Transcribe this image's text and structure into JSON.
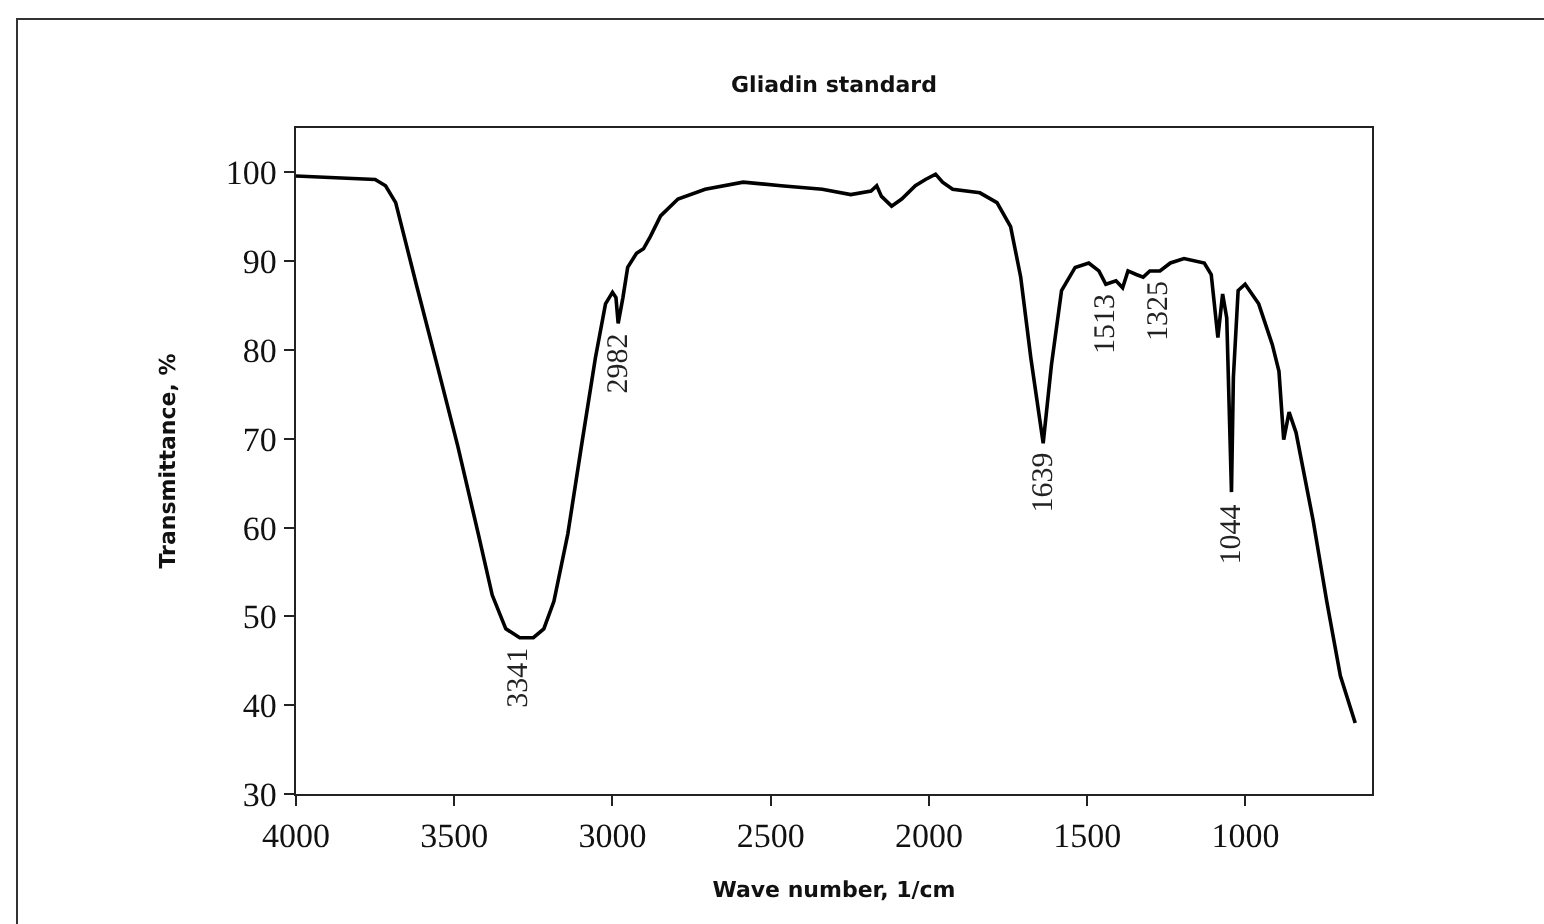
{
  "chart_data": {
    "type": "line",
    "title": "Gliadin standard",
    "xlabel": "Wave number, 1/cm",
    "ylabel": "Transmittance, %",
    "xlim": [
      4000,
      600
    ],
    "xticks": [
      4000,
      3500,
      3000,
      2500,
      2000,
      1500,
      1000
    ],
    "ylim": [
      30,
      105
    ],
    "yticks": [
      30,
      40,
      50,
      60,
      70,
      80,
      90,
      100
    ],
    "grid": false,
    "marker": "none",
    "line_style": "solid",
    "x": [
      4000,
      3750,
      3717,
      3685,
      3620,
      3554,
      3489,
      3424,
      3380,
      3337,
      3293,
      3250,
      3217,
      3185,
      3141,
      3098,
      3054,
      3022,
      3000,
      2989,
      2982,
      2967,
      2952,
      2924,
      2902,
      2880,
      2848,
      2793,
      2707,
      2587,
      2467,
      2337,
      2247,
      2183,
      2165,
      2150,
      2118,
      2086,
      2043,
      2011,
      1979,
      1957,
      1925,
      1839,
      1785,
      1742,
      1710,
      1678,
      1639,
      1613,
      1581,
      1538,
      1495,
      1463,
      1441,
      1409,
      1388,
      1371,
      1345,
      1323,
      1302,
      1270,
      1237,
      1194,
      1130,
      1108,
      1087,
      1072,
      1059,
      1044,
      1038,
      1023,
      1001,
      958,
      915,
      894,
      879,
      862,
      840,
      786,
      743,
      700,
      653
    ],
    "series": [
      {
        "color": "#000000",
        "values": [
          99.6,
          99.2,
          98.5,
          96.6,
          87.4,
          78.3,
          69.2,
          59.3,
          52.4,
          48.6,
          47.6,
          47.6,
          48.6,
          51.7,
          59.3,
          69.2,
          79.1,
          85.2,
          86.5,
          85.9,
          83.0,
          85.9,
          89.3,
          90.9,
          91.4,
          92.8,
          95.1,
          97.0,
          98.1,
          98.9,
          98.5,
          98.1,
          97.5,
          97.9,
          98.5,
          97.3,
          96.2,
          97.0,
          98.5,
          99.2,
          99.8,
          98.9,
          98.1,
          97.7,
          96.6,
          93.9,
          88.2,
          79.1,
          69.5,
          78.3,
          86.7,
          89.3,
          89.8,
          88.9,
          87.4,
          87.8,
          87.0,
          88.9,
          88.5,
          88.2,
          88.9,
          88.9,
          89.8,
          90.3,
          89.8,
          88.5,
          81.4,
          86.3,
          83.6,
          64.0,
          76.9,
          86.7,
          87.4,
          85.2,
          80.6,
          77.6,
          69.9,
          73.0,
          70.7,
          60.8,
          51.7,
          43.3,
          38.0
        ]
      }
    ],
    "annotations": [
      {
        "text": "3341",
        "x": 3295,
        "y": 47.5
      },
      {
        "text": "2982",
        "x": 2982,
        "y": 83
      },
      {
        "text": "1639",
        "x": 1639,
        "y": 69.5
      },
      {
        "text": "1513",
        "x": 1441,
        "y": 87.4
      },
      {
        "text": "1325",
        "x": 1270,
        "y": 88.9
      },
      {
        "text": "1044",
        "x": 1044,
        "y": 64
      }
    ]
  }
}
